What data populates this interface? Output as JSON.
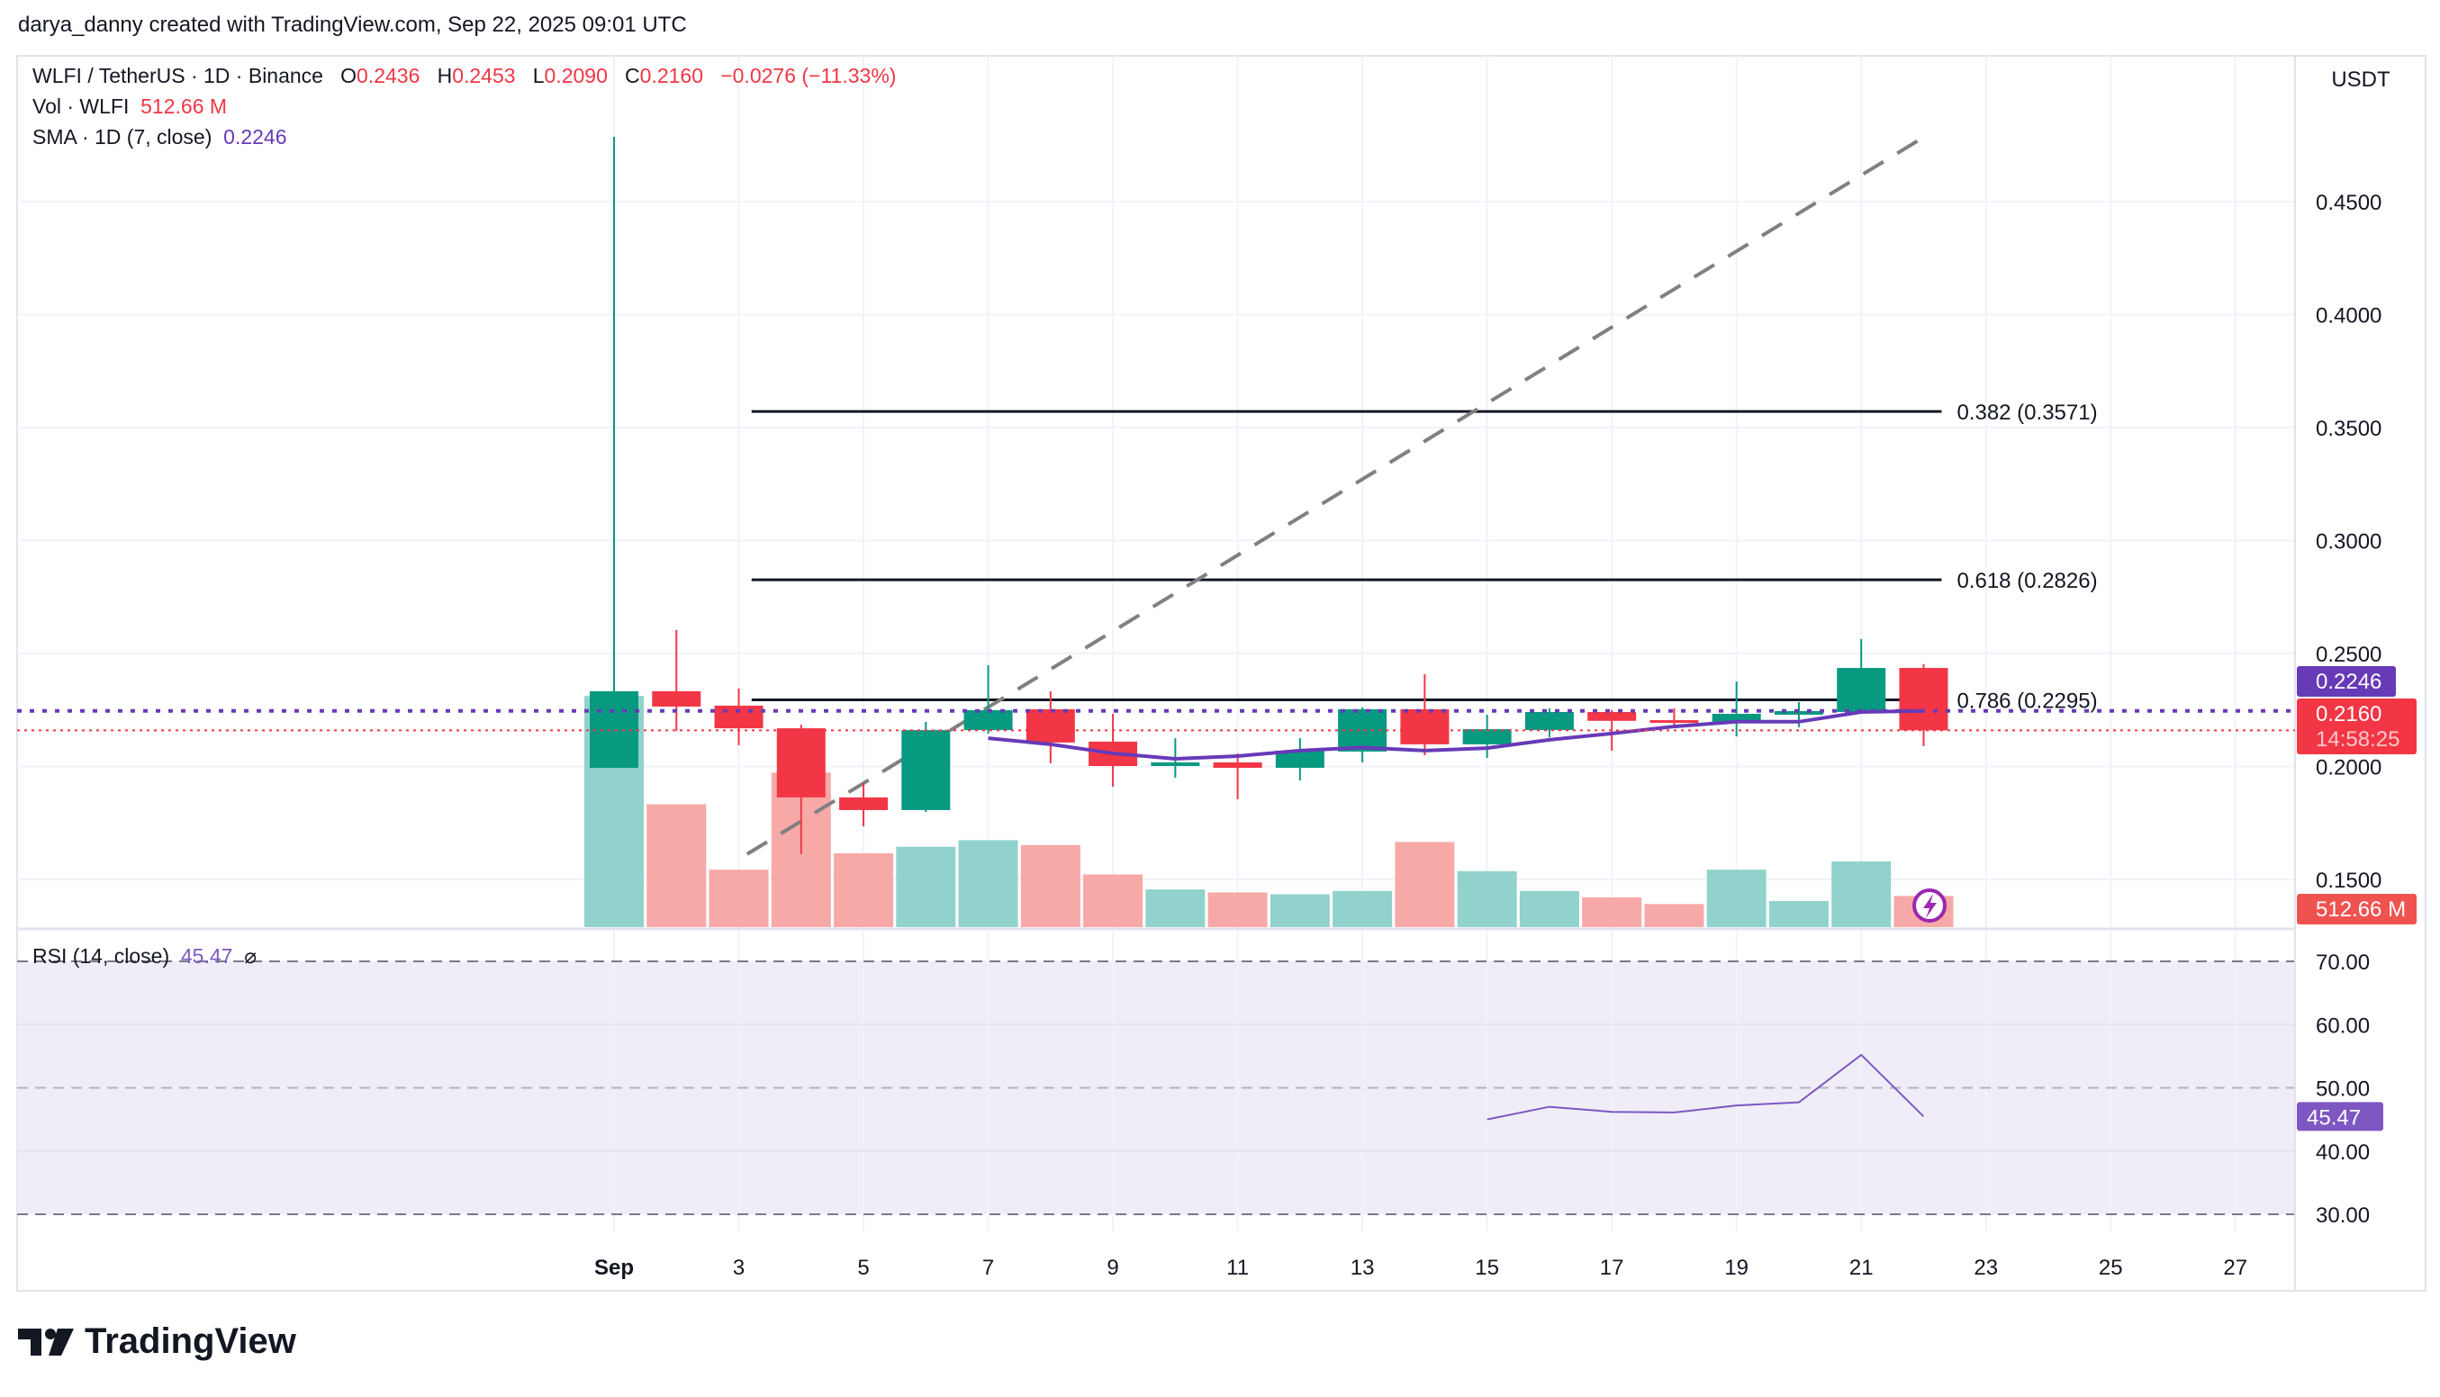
{
  "header": {
    "attribution": "darya_danny created with TradingView.com, Sep 22, 2025 09:01 UTC"
  },
  "legend": {
    "symbol": "WLFI / TetherUS · 1D · Binance",
    "o_label": "O",
    "o": "0.2436",
    "h_label": "H",
    "h": "0.2453",
    "l_label": "L",
    "l": "0.2090",
    "c_label": "C",
    "c": "0.2160",
    "change": "−0.0276 (−11.33%)",
    "vol_label": "Vol · WLFI",
    "vol": "512.66 M",
    "sma_label": "SMA · 1D (7, close)",
    "sma": "0.2246",
    "rsi_label": "RSI (14, close)",
    "rsi": "45.47"
  },
  "currency": "USDT",
  "logo": "TradingView",
  "colors": {
    "up": "#089981",
    "down": "#f23645",
    "up_vol": "#92d2cc",
    "down_vol": "#f7a9a7",
    "sma": "#673ab7",
    "rsi": "#7e57c2",
    "rsi_bg": "#f0edf8"
  },
  "chart_data": {
    "type": "candlestick",
    "x_tick_labels": [
      "Sep",
      "3",
      "5",
      "7",
      "9",
      "11",
      "13",
      "15",
      "17",
      "19",
      "21",
      "23",
      "25",
      "27"
    ],
    "x_tick_days": [
      1,
      3,
      5,
      7,
      9,
      11,
      13,
      15,
      17,
      19,
      21,
      23,
      25,
      27
    ],
    "y_tick_labels": [
      "0.4500",
      "0.4000",
      "0.3500",
      "0.3000",
      "0.2500",
      "0.2000",
      "0.1500"
    ],
    "y_ticks": [
      0.45,
      0.4,
      0.35,
      0.3,
      0.25,
      0.2,
      0.15
    ],
    "candles": [
      {
        "day": 1,
        "o": 0.1994,
        "h": 0.4787,
        "l": 0.1994,
        "c": 0.2333,
        "v": 3800
      },
      {
        "day": 2,
        "o": 0.2333,
        "h": 0.2604,
        "l": 0.2157,
        "c": 0.2265,
        "v": 2020
      },
      {
        "day": 3,
        "o": 0.2269,
        "h": 0.2345,
        "l": 0.2094,
        "c": 0.2169,
        "v": 945
      },
      {
        "day": 4,
        "o": 0.2169,
        "h": 0.2185,
        "l": 0.1612,
        "c": 0.1863,
        "v": 2540
      },
      {
        "day": 5,
        "o": 0.1863,
        "h": 0.1926,
        "l": 0.1735,
        "c": 0.1807,
        "v": 1215
      },
      {
        "day": 6,
        "o": 0.1807,
        "h": 0.2197,
        "l": 0.1799,
        "c": 0.2161,
        "v": 1320
      },
      {
        "day": 7,
        "o": 0.2161,
        "h": 0.2448,
        "l": 0.2145,
        "c": 0.2249,
        "v": 1430
      },
      {
        "day": 8,
        "o": 0.2253,
        "h": 0.2333,
        "l": 0.2014,
        "c": 0.2106,
        "v": 1350
      },
      {
        "day": 9,
        "o": 0.211,
        "h": 0.2233,
        "l": 0.191,
        "c": 0.2002,
        "v": 865
      },
      {
        "day": 10,
        "o": 0.2002,
        "h": 0.2125,
        "l": 0.195,
        "c": 0.2018,
        "v": 620
      },
      {
        "day": 11,
        "o": 0.2018,
        "h": 0.2058,
        "l": 0.1855,
        "c": 0.1994,
        "v": 570
      },
      {
        "day": 12,
        "o": 0.1994,
        "h": 0.2125,
        "l": 0.1938,
        "c": 0.207,
        "v": 540
      },
      {
        "day": 13,
        "o": 0.2066,
        "h": 0.2261,
        "l": 0.2018,
        "c": 0.2253,
        "v": 595
      },
      {
        "day": 14,
        "o": 0.2253,
        "h": 0.2408,
        "l": 0.205,
        "c": 0.2098,
        "v": 1400
      },
      {
        "day": 15,
        "o": 0.2098,
        "h": 0.2229,
        "l": 0.2038,
        "c": 0.2165,
        "v": 920
      },
      {
        "day": 16,
        "o": 0.2161,
        "h": 0.2257,
        "l": 0.2129,
        "c": 0.2241,
        "v": 595
      },
      {
        "day": 17,
        "o": 0.2241,
        "h": 0.2249,
        "l": 0.207,
        "c": 0.2202,
        "v": 490
      },
      {
        "day": 18,
        "o": 0.2205,
        "h": 0.2257,
        "l": 0.2177,
        "c": 0.2198,
        "v": 380
      },
      {
        "day": 19,
        "o": 0.2198,
        "h": 0.2376,
        "l": 0.2133,
        "c": 0.2233,
        "v": 945
      },
      {
        "day": 20,
        "o": 0.2229,
        "h": 0.2285,
        "l": 0.2173,
        "c": 0.2245,
        "v": 430
      },
      {
        "day": 21,
        "o": 0.2241,
        "h": 0.2564,
        "l": 0.2241,
        "c": 0.2436,
        "v": 1080
      },
      {
        "day": 22,
        "o": 0.2436,
        "h": 0.2453,
        "l": 0.209,
        "c": 0.216,
        "v": 512.66
      }
    ],
    "sma": [
      [
        7,
        0.2125
      ],
      [
        8,
        0.2098
      ],
      [
        9,
        0.2058
      ],
      [
        10,
        0.2034
      ],
      [
        11,
        0.2046
      ],
      [
        12,
        0.207
      ],
      [
        13,
        0.2084
      ],
      [
        14,
        0.207
      ],
      [
        15,
        0.2081
      ],
      [
        16,
        0.2118
      ],
      [
        17,
        0.2146
      ],
      [
        18,
        0.2177
      ],
      [
        19,
        0.2198
      ],
      [
        20,
        0.2198
      ],
      [
        21,
        0.2241
      ],
      [
        22,
        0.2246
      ]
    ],
    "rsi": [
      [
        15,
        45.0
      ],
      [
        16,
        47.0
      ],
      [
        17,
        46.2
      ],
      [
        18,
        46.1
      ],
      [
        19,
        47.2
      ],
      [
        20,
        47.7
      ],
      [
        21,
        55.2
      ],
      [
        22,
        45.47
      ]
    ],
    "rsi_tick_labels": [
      "70.00",
      "60.00",
      "50.00",
      "40.00",
      "30.00"
    ],
    "rsi_ticks": [
      70,
      60,
      50,
      40,
      30
    ],
    "fib": {
      "start_day": 4,
      "end_day": 22,
      "levels": [
        {
          "label": "0.382 (0.3571)",
          "price": 0.3571
        },
        {
          "label": "0.618 (0.2826)",
          "price": 0.2826
        },
        {
          "label": "0.786 (0.2295)",
          "price": 0.2295
        }
      ]
    },
    "trend_line": {
      "from": [
        4,
        0.1612
      ],
      "to": [
        22.3,
        0.4787
      ]
    },
    "last_price": {
      "sma": "0.2246",
      "close": "0.2160",
      "countdown": "14:58:25",
      "volume": "512.66 M"
    }
  }
}
